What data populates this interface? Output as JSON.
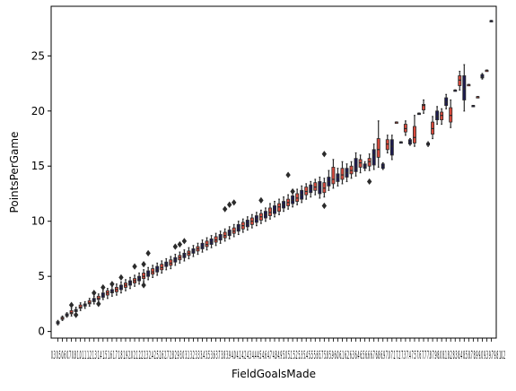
{
  "chart_data": {
    "type": "box",
    "title": "",
    "xlabel": "FieldGoalsMade",
    "ylabel": "PointsPerGame",
    "ylim": [
      -0.6,
      29.5
    ],
    "yticks": [
      0,
      5,
      10,
      15,
      20,
      25
    ],
    "xtick_labels_shown": "0.3 0.5 0.6 0.7 0.8 1.0 1.1 1.2 1.3 1.4 1.5 1.6 1.7 1.8 1.9 2.0 2.1 2.2 2.3 2.4 2.5 2.6 2.7 2.8 2.9 3.0 3.1 3.2 3.3 3.4 3.5 3.6 3.7 3.8 3.9 4.0 4.1 4.2 4.3 4.4 4.5 4.6 4.7 4.8 4.9 5.0 5.1 5.2 5.3 5.4 5.5 5.6 5.7 5.8 5.9 6.0 6.1 6.2 6.3 6.4 6.5 6.6 6.7 6.8 6.9 7.0 7.1 7.2 7.3 7.4 7.5 7.6 7.7 7.8 7.9 8.0 8.1 8.2 8.3 8.4 8.5 8.7 8.9 9.0 9.3 9.7 9.8 10.2",
    "colors": {
      "dark": "#1c1a4f",
      "red": "#d94a3c",
      "line": "#2a2a2a",
      "outlier": "#2b2b2b"
    },
    "categories": [
      {
        "x": 0.3,
        "med": 0.8,
        "q1": 0.7,
        "q3": 0.9,
        "lo": 0.6,
        "hi": 1.0,
        "out": []
      },
      {
        "x": 0.5,
        "med": 1.2,
        "q1": 1.1,
        "q3": 1.3,
        "lo": 1.0,
        "hi": 1.4,
        "out": []
      },
      {
        "x": 0.6,
        "med": 1.5,
        "q1": 1.4,
        "q3": 1.6,
        "lo": 1.3,
        "hi": 1.7,
        "out": []
      },
      {
        "x": 0.7,
        "med": 1.7,
        "q1": 1.6,
        "q3": 1.9,
        "lo": 1.4,
        "hi": 2.1,
        "out": [
          2.4
        ]
      },
      {
        "x": 0.8,
        "med": 1.9,
        "q1": 1.8,
        "q3": 2.0,
        "lo": 1.6,
        "hi": 2.2,
        "out": [
          1.5
        ]
      },
      {
        "x": 1.0,
        "med": 2.2,
        "q1": 2.1,
        "q3": 2.4,
        "lo": 1.9,
        "hi": 2.6,
        "out": []
      },
      {
        "x": 1.1,
        "med": 2.4,
        "q1": 2.3,
        "q3": 2.5,
        "lo": 2.1,
        "hi": 2.7,
        "out": []
      },
      {
        "x": 1.2,
        "med": 2.6,
        "q1": 2.5,
        "q3": 2.8,
        "lo": 2.3,
        "hi": 3.0,
        "out": []
      },
      {
        "x": 1.3,
        "med": 2.8,
        "q1": 2.7,
        "q3": 3.0,
        "lo": 2.5,
        "hi": 3.2,
        "out": [
          3.5
        ]
      },
      {
        "x": 1.4,
        "med": 3.0,
        "q1": 2.9,
        "q3": 3.2,
        "lo": 2.7,
        "hi": 3.4,
        "out": [
          2.5
        ]
      },
      {
        "x": 1.5,
        "med": 3.3,
        "q1": 3.1,
        "q3": 3.5,
        "lo": 2.9,
        "hi": 3.7,
        "out": [
          4.0
        ]
      },
      {
        "x": 1.6,
        "med": 3.5,
        "q1": 3.3,
        "q3": 3.7,
        "lo": 3.0,
        "hi": 3.9,
        "out": []
      },
      {
        "x": 1.7,
        "med": 3.6,
        "q1": 3.5,
        "q3": 3.8,
        "lo": 3.2,
        "hi": 4.1,
        "out": [
          4.3
        ]
      },
      {
        "x": 1.8,
        "med": 3.8,
        "q1": 3.6,
        "q3": 4.0,
        "lo": 3.3,
        "hi": 4.3,
        "out": []
      },
      {
        "x": 1.9,
        "med": 4.0,
        "q1": 3.8,
        "q3": 4.2,
        "lo": 3.5,
        "hi": 4.5,
        "out": [
          4.9
        ]
      },
      {
        "x": 2.0,
        "med": 4.2,
        "q1": 4.0,
        "q3": 4.4,
        "lo": 3.7,
        "hi": 4.7,
        "out": []
      },
      {
        "x": 2.1,
        "med": 4.4,
        "q1": 4.2,
        "q3": 4.6,
        "lo": 3.9,
        "hi": 4.9,
        "out": []
      },
      {
        "x": 2.2,
        "med": 4.6,
        "q1": 4.4,
        "q3": 4.8,
        "lo": 4.1,
        "hi": 5.1,
        "out": [
          5.9
        ]
      },
      {
        "x": 2.3,
        "med": 4.8,
        "q1": 4.6,
        "q3": 5.0,
        "lo": 4.3,
        "hi": 5.3,
        "out": []
      },
      {
        "x": 2.4,
        "med": 5.0,
        "q1": 4.8,
        "q3": 5.3,
        "lo": 4.5,
        "hi": 5.6,
        "out": [
          6.1,
          4.2
        ]
      },
      {
        "x": 2.5,
        "med": 5.2,
        "q1": 5.0,
        "q3": 5.5,
        "lo": 4.7,
        "hi": 5.8,
        "out": [
          7.1
        ]
      },
      {
        "x": 2.6,
        "med": 5.4,
        "q1": 5.2,
        "q3": 5.7,
        "lo": 4.9,
        "hi": 6.0,
        "out": []
      },
      {
        "x": 2.7,
        "med": 5.6,
        "q1": 5.4,
        "q3": 5.9,
        "lo": 5.1,
        "hi": 6.2,
        "out": []
      },
      {
        "x": 2.8,
        "med": 5.8,
        "q1": 5.6,
        "q3": 6.1,
        "lo": 5.3,
        "hi": 6.4,
        "out": []
      },
      {
        "x": 2.9,
        "med": 6.1,
        "q1": 5.9,
        "q3": 6.3,
        "lo": 5.6,
        "hi": 6.6,
        "out": []
      },
      {
        "x": 3.0,
        "med": 6.2,
        "q1": 6.0,
        "q3": 6.5,
        "lo": 5.7,
        "hi": 6.8,
        "out": []
      },
      {
        "x": 3.1,
        "med": 6.5,
        "q1": 6.3,
        "q3": 6.7,
        "lo": 6.0,
        "hi": 7.0,
        "out": [
          7.7
        ]
      },
      {
        "x": 3.2,
        "med": 6.7,
        "q1": 6.5,
        "q3": 6.9,
        "lo": 6.2,
        "hi": 7.2,
        "out": [
          7.9
        ]
      },
      {
        "x": 3.3,
        "med": 6.9,
        "q1": 6.7,
        "q3": 7.1,
        "lo": 6.4,
        "hi": 7.4,
        "out": [
          8.2
        ]
      },
      {
        "x": 3.4,
        "med": 7.1,
        "q1": 6.9,
        "q3": 7.3,
        "lo": 6.6,
        "hi": 7.6,
        "out": []
      },
      {
        "x": 3.5,
        "med": 7.3,
        "q1": 7.1,
        "q3": 7.5,
        "lo": 6.8,
        "hi": 7.8,
        "out": []
      },
      {
        "x": 3.6,
        "med": 7.5,
        "q1": 7.3,
        "q3": 7.7,
        "lo": 7.0,
        "hi": 8.0,
        "out": []
      },
      {
        "x": 3.7,
        "med": 7.7,
        "q1": 7.5,
        "q3": 8.0,
        "lo": 7.2,
        "hi": 8.3,
        "out": []
      },
      {
        "x": 3.8,
        "med": 7.9,
        "q1": 7.7,
        "q3": 8.2,
        "lo": 7.4,
        "hi": 8.5,
        "out": []
      },
      {
        "x": 3.9,
        "med": 8.1,
        "q1": 7.9,
        "q3": 8.4,
        "lo": 7.6,
        "hi": 8.7,
        "out": []
      },
      {
        "x": 4.0,
        "med": 8.3,
        "q1": 8.1,
        "q3": 8.6,
        "lo": 7.8,
        "hi": 8.9,
        "out": []
      },
      {
        "x": 4.1,
        "med": 8.5,
        "q1": 8.3,
        "q3": 8.8,
        "lo": 8.0,
        "hi": 9.1,
        "out": []
      },
      {
        "x": 4.2,
        "med": 8.7,
        "q1": 8.5,
        "q3": 9.0,
        "lo": 8.2,
        "hi": 9.3,
        "out": [
          11.1
        ]
      },
      {
        "x": 4.3,
        "med": 8.9,
        "q1": 8.7,
        "q3": 9.2,
        "lo": 8.4,
        "hi": 9.5,
        "out": [
          11.5
        ]
      },
      {
        "x": 4.4,
        "med": 9.1,
        "q1": 8.9,
        "q3": 9.4,
        "lo": 8.6,
        "hi": 9.7,
        "out": [
          11.7
        ]
      },
      {
        "x": 4.5,
        "med": 9.4,
        "q1": 9.1,
        "q3": 9.7,
        "lo": 8.8,
        "hi": 10.0,
        "out": []
      },
      {
        "x": 4.6,
        "med": 9.6,
        "q1": 9.3,
        "q3": 9.9,
        "lo": 9.0,
        "hi": 10.2,
        "out": []
      },
      {
        "x": 4.7,
        "med": 9.8,
        "q1": 9.5,
        "q3": 10.1,
        "lo": 9.2,
        "hi": 10.4,
        "out": []
      },
      {
        "x": 4.8,
        "med": 10.0,
        "q1": 9.7,
        "q3": 10.3,
        "lo": 9.4,
        "hi": 10.6,
        "out": []
      },
      {
        "x": 4.9,
        "med": 10.2,
        "q1": 9.9,
        "q3": 10.5,
        "lo": 9.6,
        "hi": 10.8,
        "out": []
      },
      {
        "x": 5.0,
        "med": 10.4,
        "q1": 10.1,
        "q3": 10.7,
        "lo": 9.8,
        "hi": 11.0,
        "out": [
          11.9
        ]
      },
      {
        "x": 5.1,
        "med": 10.6,
        "q1": 10.3,
        "q3": 10.9,
        "lo": 10.0,
        "hi": 11.2,
        "out": []
      },
      {
        "x": 5.2,
        "med": 10.8,
        "q1": 10.5,
        "q3": 11.2,
        "lo": 10.2,
        "hi": 11.6,
        "out": []
      },
      {
        "x": 5.3,
        "med": 11.0,
        "q1": 10.7,
        "q3": 11.4,
        "lo": 10.4,
        "hi": 11.8,
        "out": []
      },
      {
        "x": 5.4,
        "med": 11.3,
        "q1": 10.9,
        "q3": 11.6,
        "lo": 10.6,
        "hi": 12.0,
        "out": []
      },
      {
        "x": 5.5,
        "med": 11.5,
        "q1": 11.2,
        "q3": 11.8,
        "lo": 10.9,
        "hi": 12.2,
        "out": []
      },
      {
        "x": 5.6,
        "med": 11.7,
        "q1": 11.4,
        "q3": 12.0,
        "lo": 11.1,
        "hi": 12.4,
        "out": [
          14.2
        ]
      },
      {
        "x": 5.7,
        "med": 11.9,
        "q1": 11.6,
        "q3": 12.3,
        "lo": 11.3,
        "hi": 12.7,
        "out": [
          12.7
        ]
      },
      {
        "x": 5.8,
        "med": 12.1,
        "q1": 11.8,
        "q3": 12.5,
        "lo": 11.5,
        "hi": 12.9,
        "out": []
      },
      {
        "x": 5.9,
        "med": 12.4,
        "q1": 12.0,
        "q3": 12.8,
        "lo": 11.7,
        "hi": 13.2,
        "out": []
      },
      {
        "x": 6.0,
        "med": 12.7,
        "q1": 12.4,
        "q3": 13.1,
        "lo": 12.0,
        "hi": 13.4,
        "out": []
      },
      {
        "x": 6.1,
        "med": 12.9,
        "q1": 12.6,
        "q3": 13.3,
        "lo": 12.2,
        "hi": 13.6,
        "out": []
      },
      {
        "x": 6.2,
        "med": 13.1,
        "q1": 12.8,
        "q3": 13.5,
        "lo": 12.4,
        "hi": 13.8,
        "out": []
      },
      {
        "x": 6.3,
        "med": 13.3,
        "q1": 12.5,
        "q3": 13.6,
        "lo": 12.1,
        "hi": 14.0,
        "out": []
      },
      {
        "x": 6.4,
        "med": 13.0,
        "q1": 12.6,
        "q3": 13.5,
        "lo": 12.2,
        "hi": 13.9,
        "out": [
          16.1,
          11.4
        ]
      },
      {
        "x": 6.5,
        "med": 13.6,
        "q1": 13.2,
        "q3": 14.0,
        "lo": 12.8,
        "hi": 14.6,
        "out": []
      },
      {
        "x": 6.6,
        "med": 13.8,
        "q1": 13.4,
        "q3": 14.9,
        "lo": 13.0,
        "hi": 15.6,
        "out": []
      },
      {
        "x": 6.7,
        "med": 14.0,
        "q1": 13.6,
        "q3": 14.3,
        "lo": 13.2,
        "hi": 14.8,
        "out": []
      },
      {
        "x": 6.8,
        "med": 14.2,
        "q1": 13.8,
        "q3": 14.8,
        "lo": 13.4,
        "hi": 15.4,
        "out": []
      },
      {
        "x": 6.9,
        "med": 14.4,
        "q1": 14.0,
        "q3": 14.8,
        "lo": 13.6,
        "hi": 15.2,
        "out": []
      },
      {
        "x": 7.0,
        "med": 14.6,
        "q1": 14.3,
        "q3": 15.0,
        "lo": 13.9,
        "hi": 15.4,
        "out": []
      },
      {
        "x": 7.1,
        "med": 14.8,
        "q1": 14.5,
        "q3": 15.7,
        "lo": 14.1,
        "hi": 16.2,
        "out": []
      },
      {
        "x": 7.2,
        "med": 15.3,
        "q1": 14.9,
        "q3": 15.6,
        "lo": 14.4,
        "hi": 16.0,
        "out": []
      },
      {
        "x": 7.3,
        "med": 15.0,
        "q1": 14.8,
        "q3": 15.2,
        "lo": 14.6,
        "hi": 15.4,
        "out": []
      },
      {
        "x": 7.4,
        "med": 15.4,
        "q1": 15.0,
        "q3": 15.7,
        "lo": 14.6,
        "hi": 16.1,
        "out": [
          13.6
        ]
      },
      {
        "x": 7.5,
        "med": 16.0,
        "q1": 15.1,
        "q3": 16.5,
        "lo": 14.7,
        "hi": 17.0,
        "out": []
      },
      {
        "x": 7.6,
        "med": 16.5,
        "q1": 15.8,
        "q3": 17.5,
        "lo": 14.9,
        "hi": 19.1,
        "out": []
      },
      {
        "x": 7.7,
        "med": 15.0,
        "q1": 14.8,
        "q3": 15.2,
        "lo": 14.7,
        "hi": 15.3,
        "out": []
      },
      {
        "x": 7.8,
        "med": 17.0,
        "q1": 16.5,
        "q3": 17.4,
        "lo": 16.2,
        "hi": 17.8,
        "out": []
      },
      {
        "x": 7.9,
        "med": 16.8,
        "q1": 16.0,
        "q3": 17.4,
        "lo": 15.6,
        "hi": 17.8,
        "out": []
      },
      {
        "x": 8.0,
        "med": 19.0,
        "q1": 19.0,
        "q3": 19.0,
        "lo": 19.0,
        "hi": 19.0,
        "out": []
      },
      {
        "x": 8.1,
        "med": 17.2,
        "q1": 17.2,
        "q3": 17.2,
        "lo": 17.2,
        "hi": 17.2,
        "out": []
      },
      {
        "x": 8.2,
        "med": 18.4,
        "q1": 18.1,
        "q3": 18.8,
        "lo": 17.8,
        "hi": 19.1,
        "out": []
      },
      {
        "x": 8.3,
        "med": 17.2,
        "q1": 17.0,
        "q3": 17.4,
        "lo": 16.9,
        "hi": 17.5,
        "out": []
      },
      {
        "x": 8.4,
        "med": 17.6,
        "q1": 17.1,
        "q3": 18.6,
        "lo": 16.8,
        "hi": 19.6,
        "out": []
      },
      {
        "x": 8.5,
        "med": 19.8,
        "q1": 19.8,
        "q3": 19.8,
        "lo": 19.8,
        "hi": 19.8,
        "out": []
      },
      {
        "x": 8.7,
        "med": 20.5,
        "q1": 20.1,
        "q3": 20.6,
        "lo": 19.8,
        "hi": 21.0,
        "out": []
      },
      {
        "x": 8.9,
        "med": 17.0,
        "q1": 16.9,
        "q3": 17.1,
        "lo": 16.8,
        "hi": 17.2,
        "out": []
      },
      {
        "x": 9.0,
        "med": 18.4,
        "q1": 17.9,
        "q3": 19.0,
        "lo": 17.5,
        "hi": 19.5,
        "out": []
      },
      {
        "x": 9.3,
        "med": 19.5,
        "q1": 19.2,
        "q3": 20.0,
        "lo": 18.8,
        "hi": 20.4,
        "out": []
      },
      {
        "x": 9.7,
        "med": 19.6,
        "q1": 19.2,
        "q3": 19.9,
        "lo": 18.8,
        "hi": 20.2,
        "out": []
      },
      {
        "x": 9.8,
        "med": 20.8,
        "q1": 20.5,
        "q3": 21.2,
        "lo": 20.2,
        "hi": 21.5,
        "out": []
      },
      {
        "x": 10.2,
        "med": 19.6,
        "q1": 19.0,
        "q3": 20.3,
        "lo": 18.5,
        "hi": 21.0,
        "out": []
      }
    ],
    "tail_categories": [
      {
        "med": 21.9,
        "q1": 21.9,
        "q3": 21.9,
        "lo": 21.9,
        "hi": 21.9,
        "out": []
      },
      {
        "med": 22.8,
        "q1": 22.3,
        "q3": 23.2,
        "lo": 21.9,
        "hi": 23.6,
        "out": []
      },
      {
        "med": 22.0,
        "q1": 21.0,
        "q3": 23.2,
        "lo": 20.0,
        "hi": 24.2,
        "out": []
      },
      {
        "med": 22.4,
        "q1": 22.4,
        "q3": 22.4,
        "lo": 22.4,
        "hi": 22.4,
        "out": []
      },
      {
        "med": 20.5,
        "q1": 20.5,
        "q3": 20.5,
        "lo": 20.5,
        "hi": 20.5,
        "out": []
      },
      {
        "med": 21.3,
        "q1": 21.3,
        "q3": 21.3,
        "lo": 21.3,
        "hi": 21.3,
        "out": []
      },
      {
        "med": 23.1,
        "q1": 23.0,
        "q3": 23.3,
        "lo": 22.9,
        "hi": 23.4,
        "out": []
      },
      {
        "med": 23.7,
        "q1": 23.7,
        "q3": 23.7,
        "lo": 23.7,
        "hi": 23.7,
        "out": []
      },
      {
        "med": 28.2,
        "q1": 28.2,
        "q3": 28.2,
        "lo": 28.2,
        "hi": 28.2,
        "out": []
      }
    ]
  }
}
